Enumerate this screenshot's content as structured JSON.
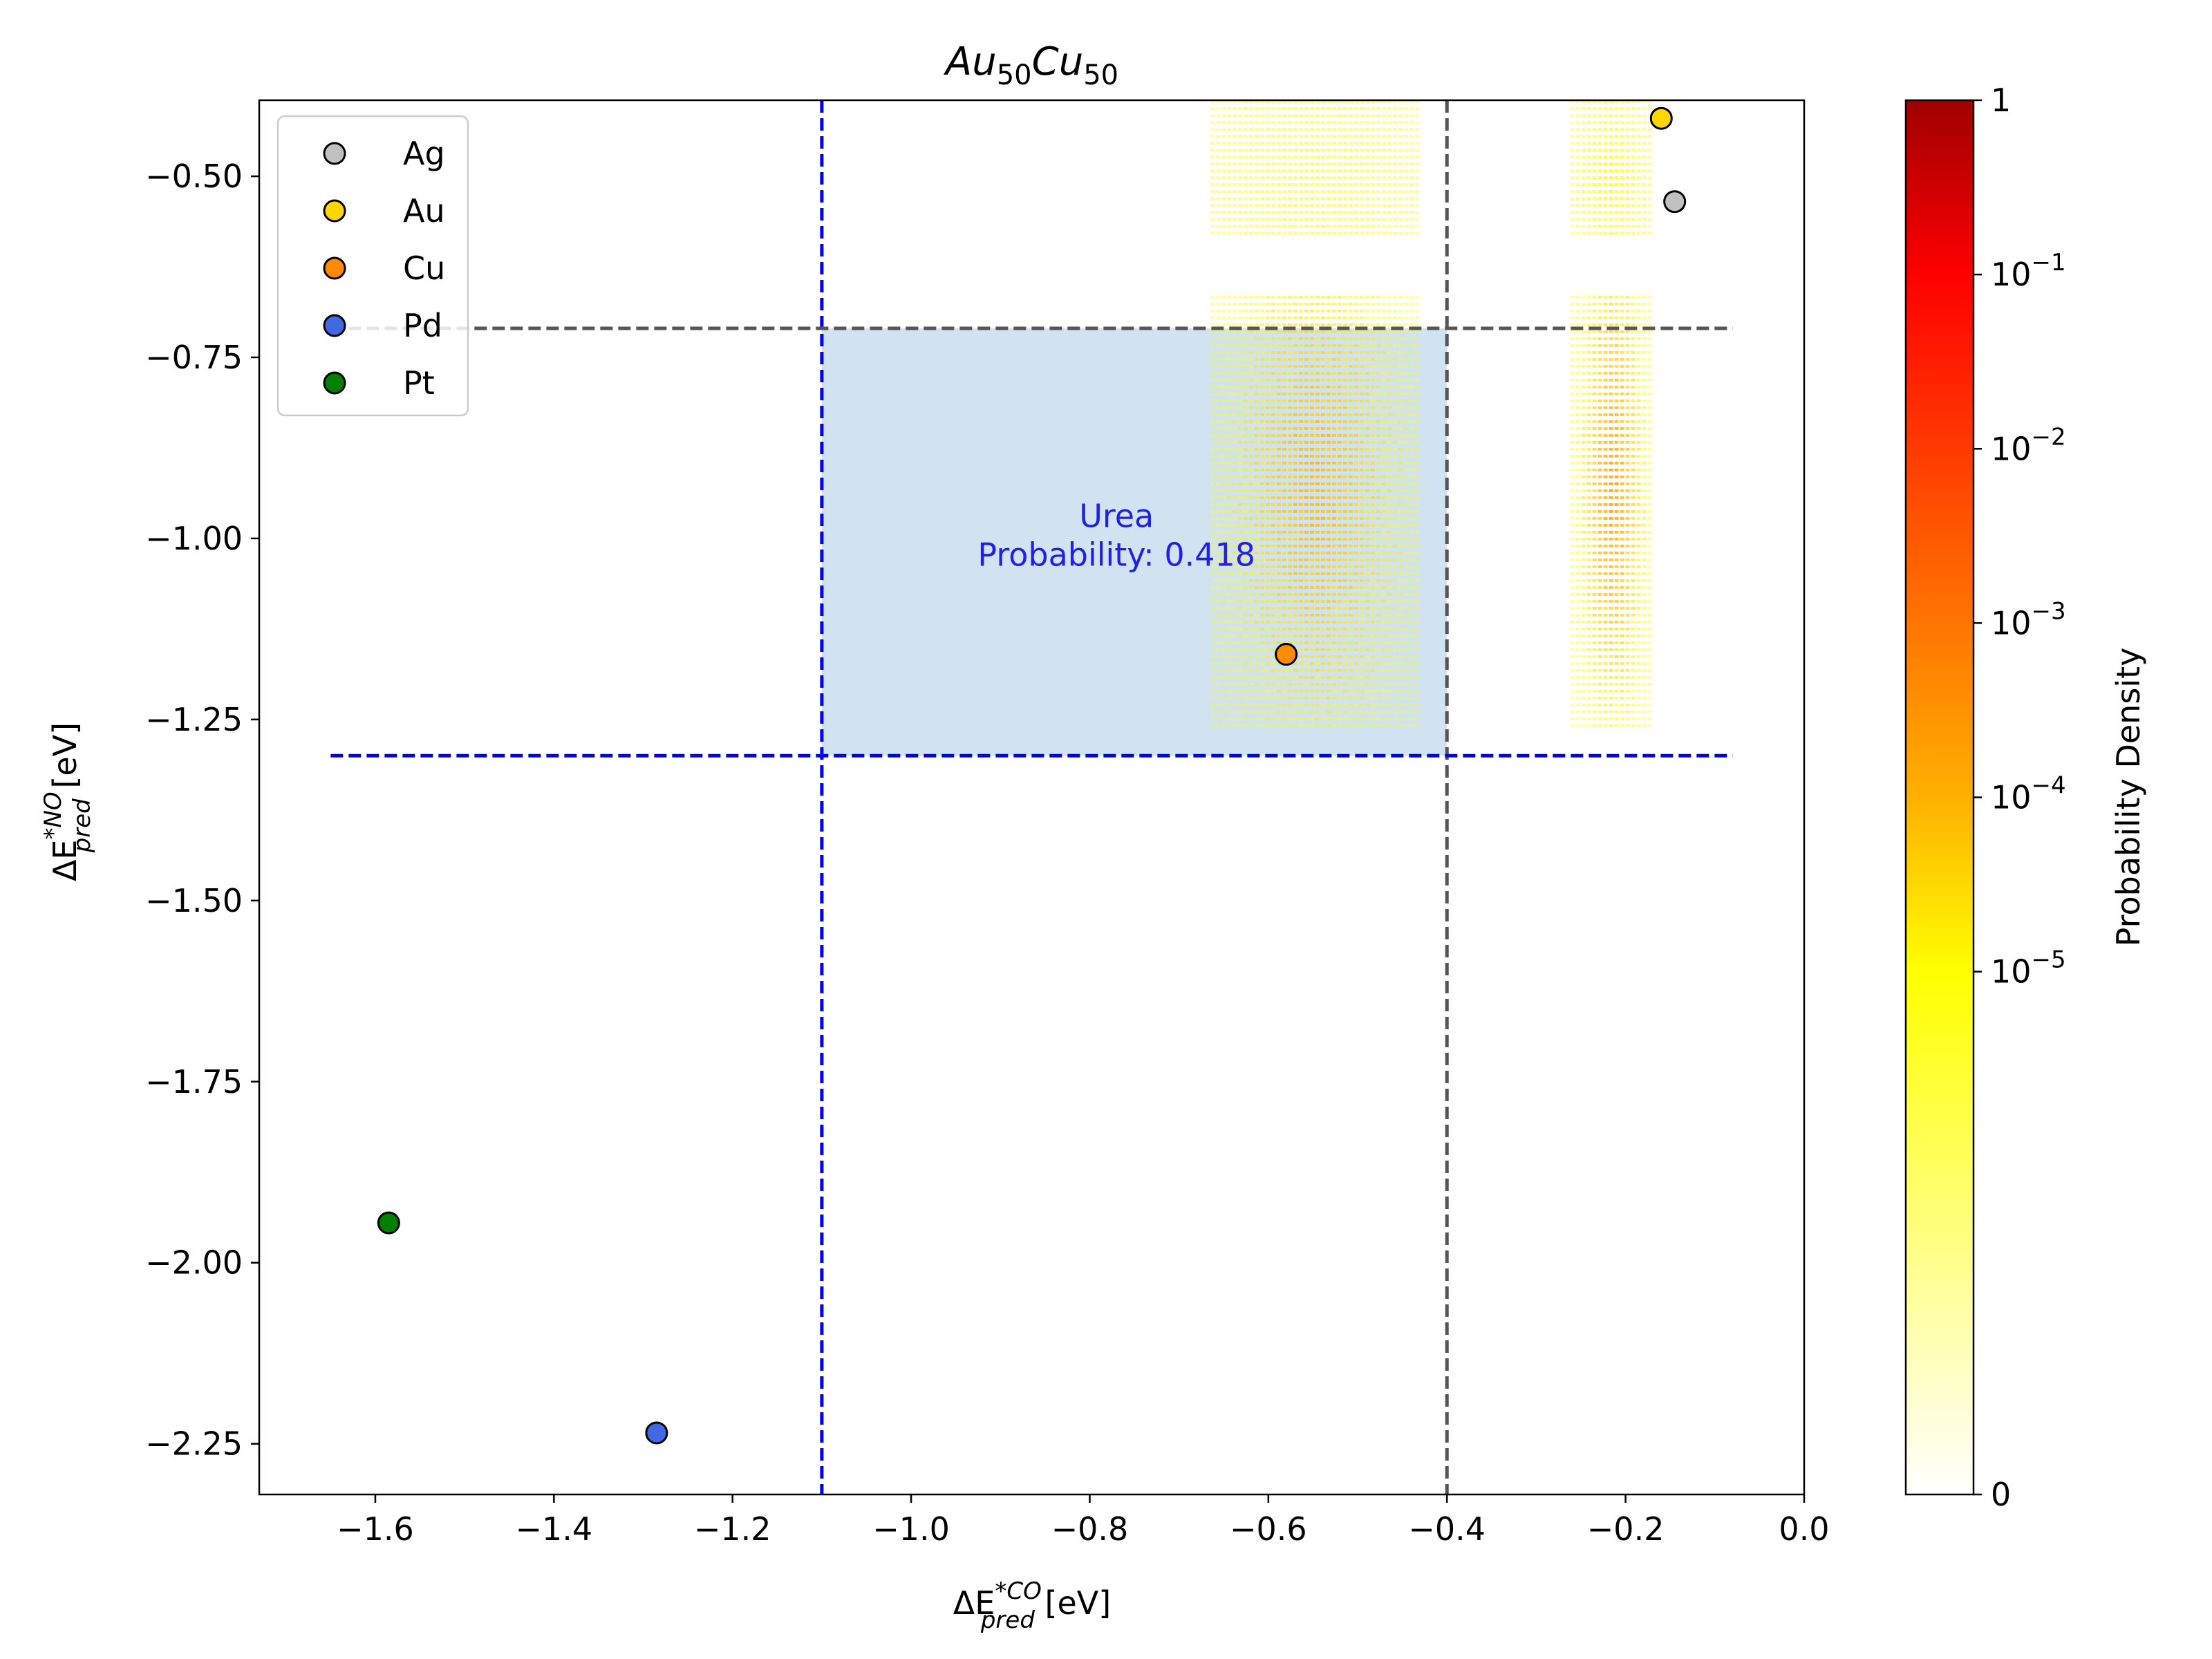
{
  "chart_data": {
    "type": "scatter",
    "title": {
      "main_1": "Au",
      "sub_1": "50",
      "main_2": "Cu",
      "sub_2": "50"
    },
    "xlabel": {
      "prefix": "ΔE",
      "sup": "*CO",
      "sub": "pred",
      "unit": " [eV]"
    },
    "ylabel": {
      "prefix": "ΔE",
      "sup": "*NO",
      "sub": "pred",
      "unit": " [eV]"
    },
    "xlim": [
      -1.73,
      0.0
    ],
    "ylim": [
      -2.32,
      -0.395
    ],
    "xticks": [
      {
        "value": -1.6,
        "label": "−1.6"
      },
      {
        "value": -1.4,
        "label": "−1.4"
      },
      {
        "value": -1.2,
        "label": "−1.2"
      },
      {
        "value": -1.0,
        "label": "−1.0"
      },
      {
        "value": -0.8,
        "label": "−0.8"
      },
      {
        "value": -0.6,
        "label": "−0.6"
      },
      {
        "value": -0.4,
        "label": "−0.4"
      },
      {
        "value": -0.2,
        "label": "−0.2"
      },
      {
        "value": 0.0,
        "label": "0.0"
      }
    ],
    "yticks": [
      {
        "value": -0.5,
        "label": "−0.50"
      },
      {
        "value": -0.75,
        "label": "−0.75"
      },
      {
        "value": -1.0,
        "label": "−1.00"
      },
      {
        "value": -1.25,
        "label": "−1.25"
      },
      {
        "value": -1.5,
        "label": "−1.50"
      },
      {
        "value": -1.75,
        "label": "−1.75"
      },
      {
        "value": -2.0,
        "label": "−2.00"
      },
      {
        "value": -2.25,
        "label": "−2.25"
      }
    ],
    "grid": false,
    "legend_position": "top-left",
    "series": [
      {
        "name": "Ag",
        "color": "#c0c0c0",
        "x": -0.145,
        "y": -0.535
      },
      {
        "name": "Au",
        "color": "#ffd700",
        "x": -0.16,
        "y": -0.42
      },
      {
        "name": "Cu",
        "color": "#ff8c00",
        "x": -0.58,
        "y": -1.16
      },
      {
        "name": "Pd",
        "color": "#4169e1",
        "x": -1.285,
        "y": -2.235
      },
      {
        "name": "Pt",
        "color": "#008000",
        "x": -1.585,
        "y": -1.945
      }
    ],
    "reference_lines": [
      {
        "orientation": "vertical",
        "value": -1.1,
        "color": "#0000ff",
        "style": "dashed",
        "from": -2.32,
        "to": -0.395
      },
      {
        "orientation": "vertical",
        "value": -0.4,
        "color": "#555555",
        "style": "dashed",
        "from": -2.32,
        "to": -0.395
      },
      {
        "orientation": "horizontal",
        "value": -1.3,
        "color": "#0000ff",
        "style": "dashed",
        "from": -1.65,
        "to": -0.08
      },
      {
        "orientation": "horizontal",
        "value": -0.71,
        "color": "#555555",
        "style": "dashed",
        "from": -1.65,
        "to": -0.08
      }
    ],
    "shaded_region": {
      "x": [
        -1.1,
        -0.4
      ],
      "y": [
        -1.3,
        -0.71
      ],
      "color": "#b8d4e8"
    },
    "annotation": {
      "line1": "Urea",
      "line2": "Probability: 0.418",
      "x": -0.77,
      "y": -1.03,
      "color": "#2020e8"
    },
    "density_blocks": [
      {
        "x": [
          -0.665,
          -0.435
        ],
        "y": [
          -0.585,
          -0.395
        ],
        "peak_x": -0.55,
        "peak_y": -0.5,
        "peak_level": 0.25
      },
      {
        "x": [
          -0.665,
          -0.435
        ],
        "y": [
          -1.265,
          -0.665
        ],
        "peak_x": -0.55,
        "peak_y": -0.93,
        "peak_level": 0.5
      },
      {
        "x": [
          -0.262,
          -0.172
        ],
        "y": [
          -0.585,
          -0.395
        ],
        "peak_x": -0.217,
        "peak_y": -0.5,
        "peak_level": 0.35
      },
      {
        "x": [
          -0.262,
          -0.172
        ],
        "y": [
          -1.265,
          -0.665
        ],
        "peak_x": -0.217,
        "peak_y": -0.93,
        "peak_level": 0.55
      }
    ],
    "colorbar": {
      "label": "Probability Density",
      "scale": "symlog",
      "colormap": [
        "#ffffff",
        "#ffff00",
        "#ff0000",
        "#a00000"
      ],
      "ticks": [
        {
          "level": 1.0,
          "base": "1",
          "exp": ""
        },
        {
          "level": 0.875,
          "base": "10",
          "exp": "−1"
        },
        {
          "level": 0.75,
          "base": "10",
          "exp": "−2"
        },
        {
          "level": 0.625,
          "base": "10",
          "exp": "−3"
        },
        {
          "level": 0.5,
          "base": "10",
          "exp": "−4"
        },
        {
          "level": 0.375,
          "base": "10",
          "exp": "−5"
        },
        {
          "level": 0.0,
          "base": "0",
          "exp": ""
        }
      ]
    }
  }
}
